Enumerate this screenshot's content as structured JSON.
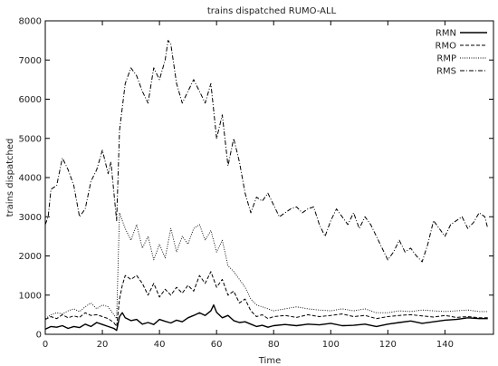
{
  "chart_data": {
    "type": "line",
    "title": "trains dispatched  RUMO-ALL",
    "xlabel": "Time",
    "ylabel": "trains dispatched",
    "xlim": [
      0,
      157
    ],
    "ylim": [
      0,
      8000
    ],
    "xticks": [
      0,
      20,
      40,
      60,
      80,
      100,
      120,
      140
    ],
    "yticks": [
      0,
      1000,
      2000,
      3000,
      4000,
      5000,
      6000,
      7000,
      8000
    ],
    "grid": false,
    "legend_position": "top-right",
    "series": [
      {
        "name": "RMN",
        "style": "solid",
        "points": [
          [
            0,
            130
          ],
          [
            2,
            200
          ],
          [
            4,
            180
          ],
          [
            6,
            220
          ],
          [
            8,
            150
          ],
          [
            10,
            200
          ],
          [
            12,
            170
          ],
          [
            14,
            260
          ],
          [
            16,
            200
          ],
          [
            18,
            300
          ],
          [
            20,
            250
          ],
          [
            22,
            200
          ],
          [
            24,
            150
          ],
          [
            25,
            100
          ],
          [
            26,
            450
          ],
          [
            27,
            550
          ],
          [
            28,
            420
          ],
          [
            30,
            350
          ],
          [
            32,
            380
          ],
          [
            34,
            260
          ],
          [
            36,
            300
          ],
          [
            38,
            250
          ],
          [
            40,
            380
          ],
          [
            42,
            330
          ],
          [
            44,
            290
          ],
          [
            46,
            360
          ],
          [
            48,
            320
          ],
          [
            50,
            420
          ],
          [
            52,
            480
          ],
          [
            54,
            550
          ],
          [
            56,
            480
          ],
          [
            58,
            600
          ],
          [
            59,
            750
          ],
          [
            60,
            560
          ],
          [
            62,
            420
          ],
          [
            64,
            480
          ],
          [
            66,
            350
          ],
          [
            68,
            300
          ],
          [
            70,
            320
          ],
          [
            72,
            260
          ],
          [
            74,
            200
          ],
          [
            76,
            230
          ],
          [
            78,
            180
          ],
          [
            80,
            220
          ],
          [
            84,
            250
          ],
          [
            88,
            220
          ],
          [
            92,
            260
          ],
          [
            96,
            240
          ],
          [
            100,
            280
          ],
          [
            104,
            220
          ],
          [
            108,
            230
          ],
          [
            112,
            260
          ],
          [
            116,
            200
          ],
          [
            120,
            260
          ],
          [
            124,
            300
          ],
          [
            128,
            340
          ],
          [
            132,
            280
          ],
          [
            136,
            320
          ],
          [
            140,
            360
          ],
          [
            144,
            380
          ],
          [
            148,
            420
          ],
          [
            152,
            400
          ],
          [
            155,
            400
          ]
        ]
      },
      {
        "name": "RMO",
        "style": "dashed",
        "points": [
          [
            0,
            380
          ],
          [
            2,
            450
          ],
          [
            4,
            400
          ],
          [
            6,
            500
          ],
          [
            8,
            420
          ],
          [
            10,
            470
          ],
          [
            12,
            430
          ],
          [
            14,
            550
          ],
          [
            16,
            480
          ],
          [
            18,
            500
          ],
          [
            20,
            450
          ],
          [
            22,
            400
          ],
          [
            24,
            300
          ],
          [
            25,
            200
          ],
          [
            26,
            900
          ],
          [
            27,
            1250
          ],
          [
            28,
            1500
          ],
          [
            30,
            1400
          ],
          [
            32,
            1500
          ],
          [
            34,
            1300
          ],
          [
            36,
            1000
          ],
          [
            38,
            1300
          ],
          [
            40,
            950
          ],
          [
            42,
            1150
          ],
          [
            44,
            1000
          ],
          [
            46,
            1200
          ],
          [
            48,
            1050
          ],
          [
            50,
            1250
          ],
          [
            52,
            1100
          ],
          [
            54,
            1500
          ],
          [
            56,
            1300
          ],
          [
            58,
            1600
          ],
          [
            60,
            1200
          ],
          [
            62,
            1400
          ],
          [
            64,
            1000
          ],
          [
            66,
            1100
          ],
          [
            68,
            800
          ],
          [
            70,
            900
          ],
          [
            72,
            600
          ],
          [
            74,
            450
          ],
          [
            76,
            500
          ],
          [
            78,
            400
          ],
          [
            80,
            450
          ],
          [
            84,
            480
          ],
          [
            88,
            430
          ],
          [
            92,
            500
          ],
          [
            96,
            450
          ],
          [
            100,
            480
          ],
          [
            104,
            520
          ],
          [
            108,
            450
          ],
          [
            112,
            480
          ],
          [
            116,
            400
          ],
          [
            120,
            450
          ],
          [
            124,
            480
          ],
          [
            128,
            500
          ],
          [
            132,
            470
          ],
          [
            136,
            440
          ],
          [
            140,
            480
          ],
          [
            144,
            430
          ],
          [
            148,
            450
          ],
          [
            152,
            420
          ],
          [
            155,
            420
          ]
        ]
      },
      {
        "name": "RMP",
        "style": "dotted",
        "points": [
          [
            0,
            400
          ],
          [
            2,
            500
          ],
          [
            4,
            550
          ],
          [
            6,
            520
          ],
          [
            8,
            600
          ],
          [
            10,
            650
          ],
          [
            12,
            580
          ],
          [
            14,
            700
          ],
          [
            16,
            800
          ],
          [
            18,
            650
          ],
          [
            20,
            750
          ],
          [
            22,
            700
          ],
          [
            24,
            500
          ],
          [
            25,
            400
          ],
          [
            26,
            3100
          ],
          [
            27,
            2900
          ],
          [
            28,
            2700
          ],
          [
            30,
            2400
          ],
          [
            32,
            2800
          ],
          [
            34,
            2200
          ],
          [
            36,
            2500
          ],
          [
            38,
            1900
          ],
          [
            40,
            2300
          ],
          [
            42,
            1950
          ],
          [
            44,
            2700
          ],
          [
            46,
            2100
          ],
          [
            48,
            2500
          ],
          [
            50,
            2300
          ],
          [
            52,
            2700
          ],
          [
            54,
            2800
          ],
          [
            56,
            2400
          ],
          [
            58,
            2650
          ],
          [
            60,
            2100
          ],
          [
            62,
            2400
          ],
          [
            64,
            1750
          ],
          [
            66,
            1600
          ],
          [
            68,
            1400
          ],
          [
            70,
            1200
          ],
          [
            72,
            900
          ],
          [
            74,
            750
          ],
          [
            76,
            700
          ],
          [
            78,
            650
          ],
          [
            80,
            600
          ],
          [
            84,
            650
          ],
          [
            88,
            700
          ],
          [
            92,
            650
          ],
          [
            96,
            620
          ],
          [
            100,
            600
          ],
          [
            104,
            650
          ],
          [
            108,
            600
          ],
          [
            112,
            650
          ],
          [
            116,
            550
          ],
          [
            120,
            550
          ],
          [
            124,
            600
          ],
          [
            128,
            580
          ],
          [
            132,
            620
          ],
          [
            136,
            600
          ],
          [
            140,
            580
          ],
          [
            144,
            600
          ],
          [
            148,
            620
          ],
          [
            152,
            580
          ],
          [
            155,
            580
          ]
        ]
      },
      {
        "name": "RMS",
        "style": "dash-dot",
        "points": [
          [
            0,
            2800
          ],
          [
            1,
            3000
          ],
          [
            2,
            3700
          ],
          [
            4,
            3800
          ],
          [
            6,
            4500
          ],
          [
            8,
            4200
          ],
          [
            10,
            3800
          ],
          [
            12,
            3000
          ],
          [
            14,
            3200
          ],
          [
            16,
            3900
          ],
          [
            18,
            4200
          ],
          [
            20,
            4700
          ],
          [
            22,
            4100
          ],
          [
            23,
            4400
          ],
          [
            25,
            2900
          ],
          [
            26,
            5200
          ],
          [
            28,
            6400
          ],
          [
            30,
            6800
          ],
          [
            32,
            6600
          ],
          [
            34,
            6200
          ],
          [
            36,
            5900
          ],
          [
            38,
            6800
          ],
          [
            40,
            6500
          ],
          [
            42,
            7000
          ],
          [
            43,
            7500
          ],
          [
            44,
            7400
          ],
          [
            46,
            6400
          ],
          [
            48,
            5900
          ],
          [
            50,
            6200
          ],
          [
            52,
            6500
          ],
          [
            54,
            6200
          ],
          [
            56,
            5900
          ],
          [
            58,
            6400
          ],
          [
            60,
            5000
          ],
          [
            62,
            5600
          ],
          [
            64,
            4300
          ],
          [
            66,
            5000
          ],
          [
            68,
            4400
          ],
          [
            70,
            3600
          ],
          [
            72,
            3100
          ],
          [
            74,
            3500
          ],
          [
            76,
            3400
          ],
          [
            78,
            3600
          ],
          [
            80,
            3300
          ],
          [
            82,
            3000
          ],
          [
            84,
            3100
          ],
          [
            86,
            3200
          ],
          [
            88,
            3250
          ],
          [
            90,
            3100
          ],
          [
            92,
            3200
          ],
          [
            94,
            3250
          ],
          [
            96,
            2800
          ],
          [
            98,
            2500
          ],
          [
            100,
            2900
          ],
          [
            102,
            3200
          ],
          [
            104,
            3000
          ],
          [
            106,
            2800
          ],
          [
            108,
            3100
          ],
          [
            110,
            2700
          ],
          [
            112,
            3000
          ],
          [
            114,
            2800
          ],
          [
            116,
            2500
          ],
          [
            118,
            2200
          ],
          [
            120,
            1900
          ],
          [
            122,
            2100
          ],
          [
            124,
            2400
          ],
          [
            126,
            2100
          ],
          [
            128,
            2200
          ],
          [
            130,
            2000
          ],
          [
            132,
            1850
          ],
          [
            134,
            2300
          ],
          [
            136,
            2900
          ],
          [
            138,
            2700
          ],
          [
            140,
            2500
          ],
          [
            142,
            2800
          ],
          [
            144,
            2900
          ],
          [
            146,
            3000
          ],
          [
            148,
            2700
          ],
          [
            150,
            2850
          ],
          [
            152,
            3100
          ],
          [
            154,
            3000
          ],
          [
            155,
            2700
          ]
        ]
      }
    ]
  }
}
